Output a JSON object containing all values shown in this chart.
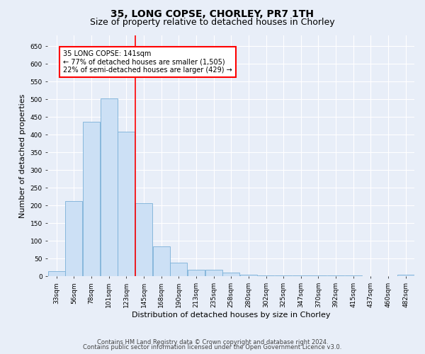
{
  "title_line1": "35, LONG COPSE, CHORLEY, PR7 1TH",
  "title_line2": "Size of property relative to detached houses in Chorley",
  "xlabel": "Distribution of detached houses by size in Chorley",
  "ylabel": "Number of detached properties",
  "bins": [
    "33sqm",
    "56sqm",
    "78sqm",
    "101sqm",
    "123sqm",
    "145sqm",
    "168sqm",
    "190sqm",
    "213sqm",
    "235sqm",
    "258sqm",
    "280sqm",
    "302sqm",
    "325sqm",
    "347sqm",
    "370sqm",
    "392sqm",
    "415sqm",
    "437sqm",
    "460sqm",
    "482sqm"
  ],
  "values": [
    15,
    213,
    436,
    502,
    408,
    207,
    84,
    38,
    18,
    18,
    10,
    5,
    3,
    2,
    2,
    2,
    2,
    2,
    1,
    0,
    5
  ],
  "bar_color": "#cce0f5",
  "bar_edge_color": "#7ab0d8",
  "vline_x_index": 4,
  "annotation_text": "35 LONG COPSE: 141sqm\n← 77% of detached houses are smaller (1,505)\n22% of semi-detached houses are larger (429) →",
  "annotation_box_color": "white",
  "annotation_box_edge_color": "red",
  "ylim": [
    0,
    680
  ],
  "yticks": [
    0,
    50,
    100,
    150,
    200,
    250,
    300,
    350,
    400,
    450,
    500,
    550,
    600,
    650
  ],
  "footer_line1": "Contains HM Land Registry data © Crown copyright and database right 2024.",
  "footer_line2": "Contains public sector information licensed under the Open Government Licence v3.0.",
  "bg_color": "#e8eef8",
  "plot_bg_color": "#e8eef8",
  "grid_color": "#ffffff",
  "title_fontsize": 10,
  "subtitle_fontsize": 9,
  "axis_label_fontsize": 8,
  "tick_fontsize": 6.5,
  "footer_fontsize": 6,
  "ann_fontsize": 7
}
